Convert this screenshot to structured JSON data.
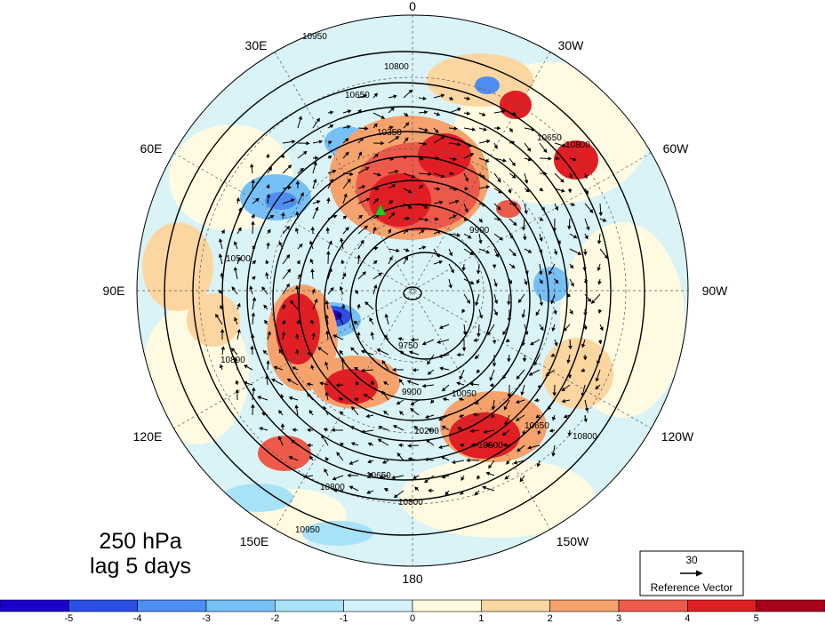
{
  "map": {
    "projection": "north-polar-stereographic",
    "longitude_labels": [
      {
        "text": "0",
        "lon": 0
      },
      {
        "text": "30E",
        "lon": 30
      },
      {
        "text": "60E",
        "lon": 60
      },
      {
        "text": "90E",
        "lon": 90
      },
      {
        "text": "120E",
        "lon": 120
      },
      {
        "text": "150E",
        "lon": 150
      },
      {
        "text": "180",
        "lon": 180
      },
      {
        "text": "150W",
        "lon": -150
      },
      {
        "text": "120W",
        "lon": -120
      },
      {
        "text": "90W",
        "lon": -90
      },
      {
        "text": "60W",
        "lon": -60
      },
      {
        "text": "30W",
        "lon": -30
      }
    ],
    "contour_labels": [
      "10950",
      "10800",
      "10650",
      "10500",
      "10350",
      "10200",
      "10050",
      "9900",
      "9750",
      "9600"
    ],
    "marker_color": "#22cc22"
  },
  "annotation": {
    "level": "250 hPa",
    "lag": "lag 5 days"
  },
  "reference_vector": {
    "magnitude": "30",
    "label": "Reference Vector"
  },
  "colorbar": {
    "ticks": [
      "-5",
      "-4",
      "-3",
      "-2",
      "-1",
      "0",
      "1",
      "2",
      "3",
      "4",
      "5"
    ],
    "colors": [
      "#1a00c8",
      "#2a50e6",
      "#4e8ef2",
      "#76c0f6",
      "#a8e2f8",
      "#d4f2f8",
      "#fffbe2",
      "#fcd6a0",
      "#f6a26c",
      "#ee5a4a",
      "#e01e24",
      "#a8001c"
    ]
  }
}
